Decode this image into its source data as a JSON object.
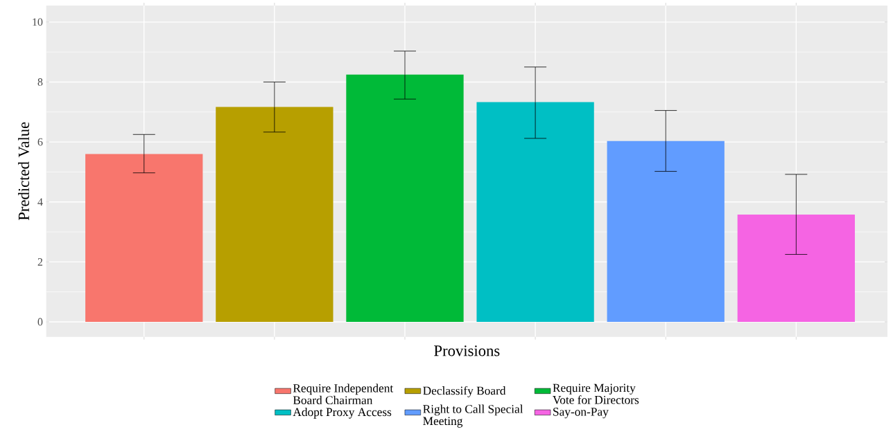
{
  "chart_data": {
    "type": "bar",
    "xlabel": "Provisions",
    "ylabel": "Predicted Value",
    "categories": [
      null,
      null,
      null,
      null,
      null,
      null
    ],
    "series": [
      {
        "name": "Require Independent Board Chairman",
        "color": "#f8766d",
        "values": [
          5.6,
          null,
          null,
          null,
          null,
          null
        ],
        "errors": [
          [
            4.97,
            6.25
          ],
          null,
          null,
          null,
          null,
          null
        ]
      },
      {
        "name": "Declassify Board",
        "color": "#b79f00",
        "values": [
          null,
          7.17,
          null,
          null,
          null,
          null
        ],
        "errors": [
          null,
          [
            6.33,
            8.0
          ],
          null,
          null,
          null,
          null
        ]
      },
      {
        "name": "Require Majority Vote for Directors",
        "color": "#00ba38",
        "values": [
          null,
          null,
          8.25,
          null,
          null,
          null
        ],
        "errors": [
          null,
          null,
          [
            7.43,
            9.03
          ],
          null,
          null,
          null
        ]
      },
      {
        "name": "Adopt Proxy Access",
        "color": "#00bfc4",
        "values": [
          null,
          null,
          null,
          7.33,
          null,
          null
        ],
        "errors": [
          null,
          null,
          null,
          [
            6.12,
            8.5
          ],
          null,
          null
        ]
      },
      {
        "name": "Right to Call Special Meeting",
        "color": "#619cff",
        "values": [
          null,
          null,
          null,
          null,
          6.03,
          null
        ],
        "errors": [
          null,
          null,
          null,
          null,
          [
            5.02,
            7.05
          ],
          null
        ]
      },
      {
        "name": "Say-on-Pay",
        "color": "#f564e3",
        "values": [
          null,
          null,
          null,
          null,
          null,
          3.58
        ],
        "errors": [
          null,
          null,
          null,
          null,
          null,
          [
            2.25,
            4.92
          ]
        ]
      }
    ],
    "ylim": [
      -0.5,
      10.55
    ],
    "yticks": [
      0,
      2,
      4,
      6,
      8,
      10
    ],
    "grid": true,
    "legend": "bottom"
  }
}
